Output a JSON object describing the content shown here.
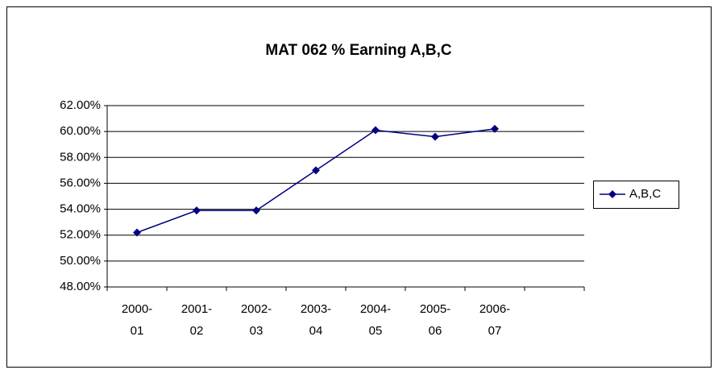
{
  "chart_data": {
    "type": "line",
    "title": "MAT 062 % Earning A,B,C",
    "categories": [
      "2000-01",
      "2001-02",
      "2002-03",
      "2003-04",
      "2004-05",
      "2005-06",
      "2006-07",
      null
    ],
    "series": [
      {
        "name": "A,B,C",
        "color": "#000080",
        "values": [
          52.2,
          53.9,
          53.9,
          57.0,
          60.1,
          59.6,
          60.2,
          null
        ]
      }
    ],
    "ylim": [
      48,
      62
    ],
    "yticks": [
      {
        "value": 48,
        "label": "48.00%"
      },
      {
        "value": 50,
        "label": "50.00%"
      },
      {
        "value": 52,
        "label": "52.00%"
      },
      {
        "value": 54,
        "label": "54.00%"
      },
      {
        "value": 56,
        "label": "56.00%"
      },
      {
        "value": 58,
        "label": "58.00%"
      },
      {
        "value": 60,
        "label": "60.00%"
      },
      {
        "value": 62,
        "label": "62.00%"
      }
    ],
    "grid": true,
    "legend": "right"
  }
}
